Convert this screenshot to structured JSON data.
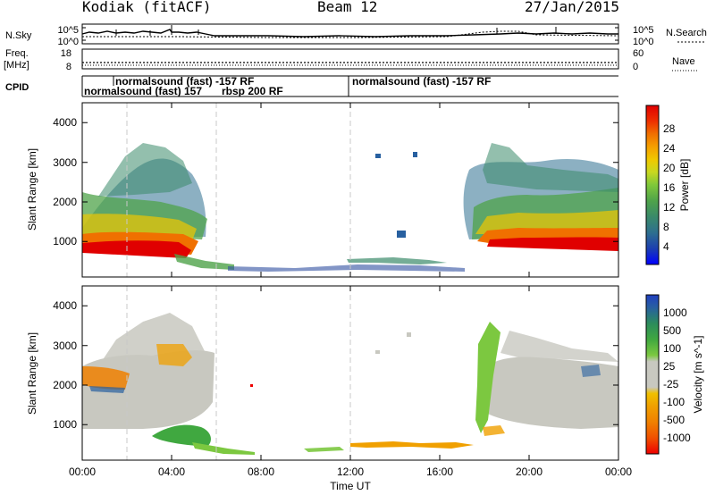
{
  "header": {
    "station": "Kodiak (fitACF)",
    "beam": "Beam 12",
    "date": "27/Jan/2015"
  },
  "params": {
    "nsky_label": "N.Sky",
    "nsky_ticks": [
      "10^5",
      "10^0"
    ],
    "nsearch_label": "N.Search",
    "nsearch_ticks": [
      "10^5",
      "10^0"
    ],
    "freq_label": [
      "Freq.",
      "[MHz]"
    ],
    "freq_ticks": [
      "18",
      "8"
    ],
    "nave_label": "Nave",
    "nave_ticks": [
      "60",
      "0"
    ],
    "cpid_label": "CPID",
    "cpid_segments": [
      "normalsound (fast) -157 RF",
      "normalsound (fast) 157",
      "rbsp 200 RF",
      "normalsound (fast) -157 RF"
    ]
  },
  "chart_data": [
    {
      "type": "heatmap",
      "panel": "power",
      "xlabel": "Time UT",
      "ylabel": "Slant Range [km]",
      "x_tick_labels": [
        "00:00",
        "04:00",
        "08:00",
        "12:00",
        "16:00",
        "20:00",
        "00:00"
      ],
      "xlim_hours": [
        0,
        24
      ],
      "y_ticks": [
        1000,
        2000,
        3000,
        4000
      ],
      "ylim_km": [
        180,
        4580
      ],
      "colorbar_label": "Power [dB]",
      "colorbar_ticks": [
        "28",
        "24",
        "20",
        "16",
        "12",
        "8",
        "4"
      ],
      "colorbar_colors": [
        "#0000ff",
        "#1c3fb0",
        "#2e6f8f",
        "#3a8a6a",
        "#4fa34a",
        "#7fc83a",
        "#c8d820",
        "#f0c800",
        "#f5a000",
        "#f07000",
        "#ee3000",
        "#e00000"
      ],
      "regions": [
        {
          "t": [
            0,
            3.9
          ],
          "range_km": [
            700,
            1150
          ],
          "level": "28 dB"
        },
        {
          "t": [
            3.9,
            5.3
          ],
          "range_km": [
            550,
            950
          ],
          "level": "24 dB"
        },
        {
          "t": [
            0,
            5.3
          ],
          "range_km": [
            1150,
            2400
          ],
          "level": "8-24 dB"
        },
        {
          "t": [
            0.8,
            4.8
          ],
          "range_km": [
            2400,
            3500
          ],
          "level": "8-16 dB"
        },
        {
          "t": [
            17.5,
            24
          ],
          "range_km": [
            700,
            1150
          ],
          "level": "28 dB"
        },
        {
          "t": [
            17.3,
            24
          ],
          "range_km": [
            1150,
            2400
          ],
          "level": "8-24 dB"
        },
        {
          "t": [
            18.2,
            23.5
          ],
          "range_km": [
            2400,
            3500
          ],
          "level": "8-16 dB"
        }
      ]
    },
    {
      "type": "heatmap",
      "panel": "velocity",
      "xlabel": "Time UT",
      "ylabel": "Slant Range [km]",
      "x_tick_labels": [
        "00:00",
        "04:00",
        "08:00",
        "12:00",
        "16:00",
        "20:00",
        "00:00"
      ],
      "xlim_hours": [
        0,
        24
      ],
      "y_ticks": [
        1000,
        2000,
        3000,
        4000
      ],
      "ylim_km": [
        180,
        4580
      ],
      "colorbar_label": "Velocity [m s^-1]",
      "colorbar_ticks": [
        "1000",
        "500",
        "100",
        "25",
        "-25",
        "-100",
        "-500",
        "-1000"
      ],
      "colorbar_colors": [
        "#ee0000",
        "#f05000",
        "#f08000",
        "#f0a000",
        "#f0c000",
        "#c8c8c0",
        "#c8c8c0",
        "#7cc840",
        "#40a840",
        "#2c8c5c",
        "#2860a0",
        "#2040c0"
      ],
      "regions": [
        {
          "t": [
            0,
            6
          ],
          "range_km": [
            600,
            2600
          ],
          "level": "-25 to 25 m/s"
        },
        {
          "t": [
            3.3,
            5.3
          ],
          "range_km": [
            550,
            1100
          ],
          "level": "100 m/s"
        },
        {
          "t": [
            0,
            5
          ],
          "range_km": [
            1800,
            3300
          ],
          "level": "-100 to 500 m/s"
        },
        {
          "t": [
            11.6,
            16.8
          ],
          "range_km": [
            450,
            650
          ],
          "level": "-100 m/s"
        },
        {
          "t": [
            17,
            24
          ],
          "range_km": [
            600,
            2600
          ],
          "level": "-25 to 25 m/s"
        },
        {
          "t": [
            17.2,
            18.8
          ],
          "range_km": [
            700,
            3400
          ],
          "level": "100 m/s"
        }
      ]
    }
  ]
}
